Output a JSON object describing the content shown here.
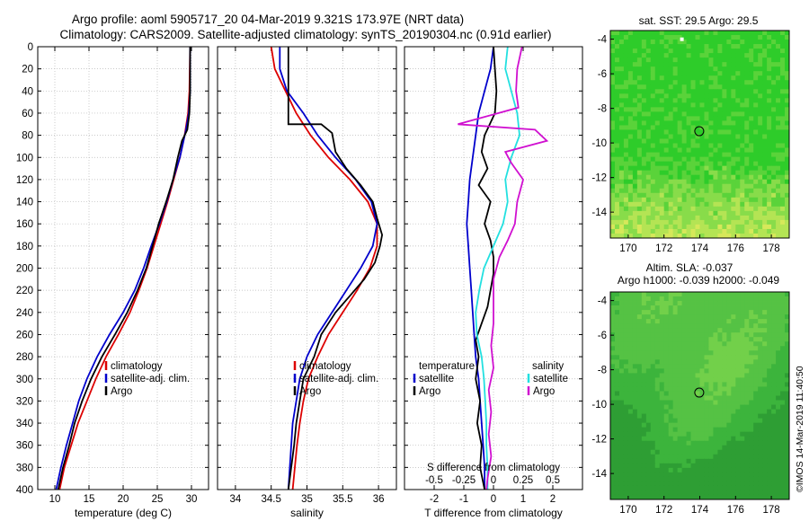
{
  "header": {
    "line1": "Argo profile: aoml 5905717_20 04-Mar-2019 9.321S 173.97E (NRT data)",
    "line2": "Climatology: CARS2009. Satellite-adjusted climatology: synTS_20190304.nc (0.91d earlier)"
  },
  "watermark": "©IMOS 14-Mar-2019 11:40:50",
  "colors": {
    "climatology": "#dd0000",
    "satellite": "#0000cc",
    "argo": "#000000",
    "sat_salinity": "#22e0e0",
    "argo_salinity": "#d010d0",
    "map_green": "#33cc33"
  },
  "chart_data": [
    {
      "type": "line",
      "id": "temperature",
      "xlabel": "temperature (deg C)",
      "ylabel": "",
      "xlim": [
        7.5,
        32.5
      ],
      "ylim": [
        400,
        0
      ],
      "xticks": [
        10,
        15,
        20,
        25,
        30
      ],
      "yticks": [
        0,
        20,
        40,
        60,
        80,
        100,
        120,
        140,
        160,
        180,
        200,
        220,
        240,
        260,
        280,
        300,
        320,
        340,
        360,
        380,
        400
      ],
      "grid": true,
      "legend": [
        "climatology",
        "satellite-adj. clim.",
        "Argo"
      ],
      "series": [
        {
          "name": "climatology",
          "color": "#dd0000",
          "points": [
            [
              29.8,
              0
            ],
            [
              29.7,
              40
            ],
            [
              29.5,
              60
            ],
            [
              29.0,
              80
            ],
            [
              28.3,
              100
            ],
            [
              27.4,
              120
            ],
            [
              26.5,
              140
            ],
            [
              25.5,
              160
            ],
            [
              24.5,
              180
            ],
            [
              23.5,
              200
            ],
            [
              22.3,
              220
            ],
            [
              21.0,
              240
            ],
            [
              19.3,
              260
            ],
            [
              17.5,
              280
            ],
            [
              16.0,
              300
            ],
            [
              14.7,
              320
            ],
            [
              13.4,
              340
            ],
            [
              12.4,
              360
            ],
            [
              11.4,
              380
            ],
            [
              10.7,
              400
            ]
          ]
        },
        {
          "name": "satellite-adj. clim.",
          "color": "#0000cc",
          "points": [
            [
              29.8,
              0
            ],
            [
              29.8,
              40
            ],
            [
              29.6,
              60
            ],
            [
              29.2,
              75
            ],
            [
              28.3,
              100
            ],
            [
              27.3,
              120
            ],
            [
              26.4,
              140
            ],
            [
              25.3,
              160
            ],
            [
              24.1,
              180
            ],
            [
              23.0,
              200
            ],
            [
              21.7,
              220
            ],
            [
              20.0,
              240
            ],
            [
              18.0,
              260
            ],
            [
              16.2,
              280
            ],
            [
              14.7,
              300
            ],
            [
              13.5,
              320
            ],
            [
              12.6,
              340
            ],
            [
              11.7,
              360
            ],
            [
              10.9,
              380
            ],
            [
              10.2,
              400
            ]
          ]
        },
        {
          "name": "Argo",
          "color": "#000000",
          "points": [
            [
              29.8,
              0
            ],
            [
              29.8,
              40
            ],
            [
              29.7,
              60
            ],
            [
              29.4,
              75
            ],
            [
              28.6,
              85
            ],
            [
              28.0,
              100
            ],
            [
              27.3,
              120
            ],
            [
              26.3,
              140
            ],
            [
              25.2,
              160
            ],
            [
              24.3,
              180
            ],
            [
              23.4,
              200
            ],
            [
              22.1,
              220
            ],
            [
              20.6,
              240
            ],
            [
              18.8,
              260
            ],
            [
              16.9,
              280
            ],
            [
              15.3,
              300
            ],
            [
              14.0,
              320
            ],
            [
              12.9,
              340
            ],
            [
              12.1,
              360
            ],
            [
              11.2,
              380
            ],
            [
              10.5,
              400
            ]
          ]
        }
      ]
    },
    {
      "type": "line",
      "id": "salinity",
      "xlabel": "salinity",
      "ylabel": "",
      "xlim": [
        33.75,
        36.25
      ],
      "ylim": [
        400,
        0
      ],
      "xticks": [
        34,
        34.5,
        35,
        35.5,
        36
      ],
      "grid": true,
      "legend": [
        "climatology",
        "satellite-adj. clim.",
        "Argo"
      ],
      "series": [
        {
          "name": "climatology",
          "color": "#dd0000",
          "points": [
            [
              34.5,
              0
            ],
            [
              34.55,
              20
            ],
            [
              34.7,
              40
            ],
            [
              34.85,
              60
            ],
            [
              35.05,
              80
            ],
            [
              35.3,
              100
            ],
            [
              35.6,
              120
            ],
            [
              35.85,
              140
            ],
            [
              35.98,
              160
            ],
            [
              35.98,
              180
            ],
            [
              35.88,
              200
            ],
            [
              35.7,
              220
            ],
            [
              35.5,
              240
            ],
            [
              35.3,
              260
            ],
            [
              35.15,
              280
            ],
            [
              35.02,
              300
            ],
            [
              34.95,
              320
            ],
            [
              34.9,
              340
            ],
            [
              34.86,
              360
            ],
            [
              34.83,
              380
            ],
            [
              34.8,
              400
            ]
          ]
        },
        {
          "name": "satellite-adj. clim.",
          "color": "#0000cc",
          "points": [
            [
              34.62,
              0
            ],
            [
              34.62,
              20
            ],
            [
              34.72,
              40
            ],
            [
              34.95,
              60
            ],
            [
              35.15,
              80
            ],
            [
              35.4,
              100
            ],
            [
              35.68,
              120
            ],
            [
              35.9,
              140
            ],
            [
              35.98,
              160
            ],
            [
              35.92,
              180
            ],
            [
              35.75,
              200
            ],
            [
              35.55,
              220
            ],
            [
              35.35,
              240
            ],
            [
              35.15,
              260
            ],
            [
              35.0,
              280
            ],
            [
              34.9,
              300
            ],
            [
              34.85,
              320
            ],
            [
              34.8,
              340
            ],
            [
              34.78,
              360
            ],
            [
              34.76,
              380
            ],
            [
              34.74,
              400
            ]
          ]
        },
        {
          "name": "Argo",
          "color": "#000000",
          "points": [
            [
              34.74,
              0
            ],
            [
              34.74,
              40
            ],
            [
              34.74,
              60
            ],
            [
              34.74,
              70
            ],
            [
              35.2,
              70
            ],
            [
              35.35,
              78
            ],
            [
              35.4,
              95
            ],
            [
              35.55,
              110
            ],
            [
              35.75,
              125
            ],
            [
              35.92,
              140
            ],
            [
              35.98,
              155
            ],
            [
              36.05,
              170
            ],
            [
              36.02,
              180
            ],
            [
              35.95,
              195
            ],
            [
              35.8,
              210
            ],
            [
              35.6,
              225
            ],
            [
              35.4,
              240
            ],
            [
              35.2,
              260
            ],
            [
              35.1,
              280
            ],
            [
              34.95,
              300
            ],
            [
              34.9,
              320
            ],
            [
              34.85,
              340
            ],
            [
              34.82,
              360
            ],
            [
              34.78,
              380
            ],
            [
              34.74,
              400
            ]
          ]
        }
      ]
    },
    {
      "type": "line",
      "id": "difference",
      "xlabel": "T difference from climatology",
      "xlabel_top": "S difference from climatology",
      "ylabel": "",
      "xlim": [
        -3,
        3
      ],
      "xlim_top": [
        -0.75,
        0.75
      ],
      "ylim": [
        400,
        0
      ],
      "xticks": [
        -2,
        -1,
        0,
        1,
        2
      ],
      "xticks_top": [
        "-0.5",
        "-0.25",
        "0",
        "0.25",
        "0.5"
      ],
      "grid": true,
      "legend_left_title": "temperature",
      "legend_right_title": "salinity",
      "legend_left": [
        "satellite",
        "Argo"
      ],
      "legend_right": [
        "satellite",
        "Argo"
      ],
      "series": [
        {
          "name": "temperature satellite",
          "color": "#0000cc",
          "axis": "T",
          "points": [
            [
              0.0,
              0
            ],
            [
              -0.1,
              20
            ],
            [
              -0.3,
              40
            ],
            [
              -0.5,
              60
            ],
            [
              -0.6,
              80
            ],
            [
              -0.7,
              100
            ],
            [
              -0.8,
              120
            ],
            [
              -0.85,
              140
            ],
            [
              -0.9,
              160
            ],
            [
              -0.85,
              180
            ],
            [
              -0.8,
              200
            ],
            [
              -0.75,
              220
            ],
            [
              -0.7,
              240
            ],
            [
              -0.65,
              260
            ],
            [
              -0.6,
              280
            ],
            [
              -0.5,
              300
            ],
            [
              -0.45,
              320
            ],
            [
              -0.4,
              340
            ],
            [
              -0.35,
              360
            ],
            [
              -0.3,
              380
            ],
            [
              -0.3,
              400
            ]
          ]
        },
        {
          "name": "temperature Argo",
          "color": "#000000",
          "axis": "T",
          "points": [
            [
              0.0,
              0
            ],
            [
              0.05,
              20
            ],
            [
              0.1,
              40
            ],
            [
              0.05,
              60
            ],
            [
              -0.3,
              80
            ],
            [
              -0.4,
              95
            ],
            [
              -0.2,
              110
            ],
            [
              -0.5,
              125
            ],
            [
              -0.1,
              140
            ],
            [
              -0.3,
              160
            ],
            [
              -0.1,
              175
            ],
            [
              0.0,
              190
            ],
            [
              0.0,
              205
            ],
            [
              -0.1,
              220
            ],
            [
              -0.2,
              235
            ],
            [
              -0.4,
              250
            ],
            [
              -0.6,
              265
            ],
            [
              -0.5,
              280
            ],
            [
              -0.6,
              300
            ],
            [
              -0.45,
              320
            ],
            [
              -0.55,
              340
            ],
            [
              -0.4,
              360
            ],
            [
              -0.45,
              380
            ],
            [
              -0.3,
              400
            ]
          ]
        },
        {
          "name": "salinity satellite",
          "color": "#22e0e0",
          "axis": "S",
          "points": [
            [
              0.12,
              0
            ],
            [
              0.1,
              20
            ],
            [
              0.15,
              40
            ],
            [
              0.2,
              60
            ],
            [
              0.22,
              80
            ],
            [
              0.15,
              100
            ],
            [
              0.1,
              120
            ],
            [
              0.12,
              140
            ],
            [
              0.08,
              160
            ],
            [
              0.0,
              180
            ],
            [
              -0.08,
              200
            ],
            [
              -0.12,
              220
            ],
            [
              -0.15,
              240
            ],
            [
              -0.14,
              260
            ],
            [
              -0.1,
              280
            ],
            [
              -0.08,
              300
            ],
            [
              -0.07,
              320
            ],
            [
              -0.06,
              340
            ],
            [
              -0.06,
              360
            ],
            [
              -0.05,
              380
            ],
            [
              -0.05,
              400
            ]
          ]
        },
        {
          "name": "salinity Argo",
          "color": "#d010d0",
          "axis": "S",
          "points": [
            [
              0.24,
              0
            ],
            [
              0.2,
              20
            ],
            [
              0.19,
              40
            ],
            [
              0.21,
              55
            ],
            [
              -0.3,
              70
            ],
            [
              0.35,
              75
            ],
            [
              0.45,
              85
            ],
            [
              0.1,
              95
            ],
            [
              0.15,
              105
            ],
            [
              0.25,
              120
            ],
            [
              0.2,
              140
            ],
            [
              0.18,
              160
            ],
            [
              0.12,
              175
            ],
            [
              0.05,
              190
            ],
            [
              0.0,
              210
            ],
            [
              0.0,
              230
            ],
            [
              0.0,
              250
            ],
            [
              -0.02,
              270
            ],
            [
              0.0,
              290
            ],
            [
              -0.04,
              310
            ],
            [
              -0.02,
              330
            ],
            [
              -0.04,
              350
            ],
            [
              -0.02,
              370
            ],
            [
              -0.05,
              390
            ],
            [
              -0.06,
              400
            ]
          ]
        }
      ]
    },
    {
      "type": "heatmap",
      "id": "sst_map",
      "title": "sat. SST: 29.5 Argo: 29.5",
      "xlim": [
        169,
        179
      ],
      "ylim": [
        -15.5,
        -3.5
      ],
      "xticks": [
        170,
        172,
        174,
        176,
        178
      ],
      "yticks": [
        -4,
        -6,
        -8,
        -10,
        -12,
        -14
      ],
      "marker": [
        173.97,
        -9.321
      ],
      "palette": [
        "#2ecc2a",
        "#5ad33a",
        "#88dc4a",
        "#b4e454",
        "#d6e85a"
      ]
    },
    {
      "type": "heatmap",
      "id": "sla_map",
      "title_line1": "Altim. SLA: -0.037",
      "title_line2": "Argo h1000: -0.039 h2000: -0.049",
      "xlim": [
        169,
        179
      ],
      "ylim": [
        -15.5,
        -3.5
      ],
      "xticks": [
        170,
        172,
        174,
        176,
        178
      ],
      "yticks": [
        -4,
        -6,
        -8,
        -10,
        -12,
        -14
      ],
      "marker": [
        173.97,
        -9.321
      ],
      "palette": [
        "#2e9e34",
        "#3cb43c",
        "#55c244",
        "#72d04a",
        "#a6dc44"
      ]
    }
  ]
}
